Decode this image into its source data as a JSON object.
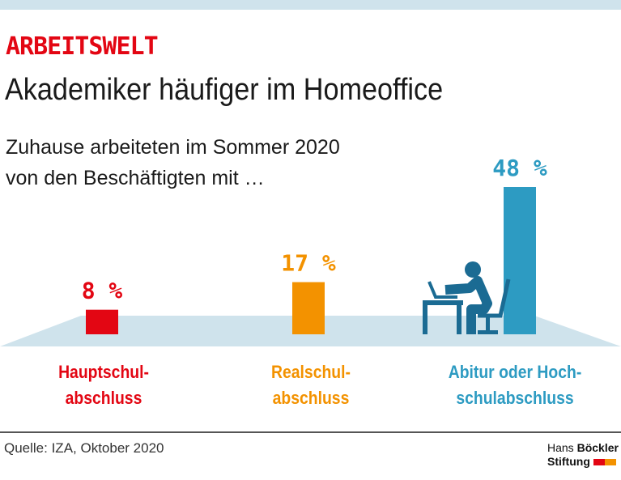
{
  "header": {
    "kicker": "ARBEITSWELT",
    "title": "Akademiker häufiger im Homeoffice",
    "subtitle_line1": "Zuhause arbeiteten im Sommer 2020",
    "subtitle_line2": "von den Beschäftigten mit …"
  },
  "chart_data": {
    "type": "bar",
    "categories": [
      "Hauptschul-\nabschluss",
      "Realschul-\nabschluss",
      "Abitur oder Hoch-\nschulabschluss"
    ],
    "values": [
      8,
      17,
      48
    ],
    "value_labels": [
      "8 %",
      "17 %",
      "48 %"
    ],
    "colors": [
      "#e30613",
      "#f39200",
      "#2d9bc2"
    ],
    "unit": "%",
    "ylim": [
      0,
      48
    ],
    "grid": false
  },
  "icons": {
    "illustration": "person-working-at-laptop-icon"
  },
  "footer": {
    "source": "Quelle: IZA, Oktober 2020",
    "logo_line1_a": "Hans ",
    "logo_line1_b": "Böckler",
    "logo_line2": "Stiftung"
  },
  "colors": {
    "floor": "#cfe3ec",
    "icon": "#1b6b93"
  }
}
